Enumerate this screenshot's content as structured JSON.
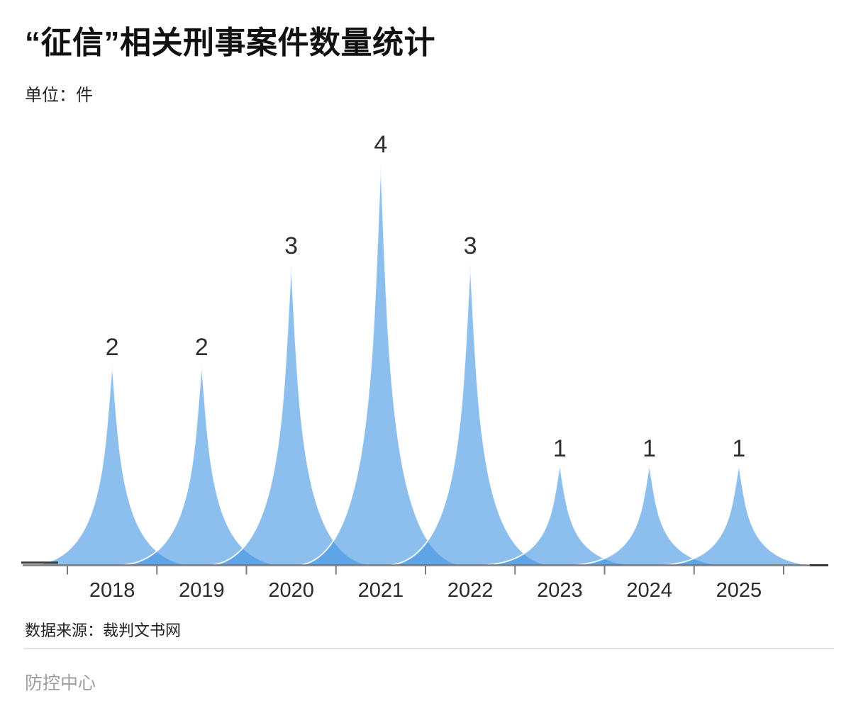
{
  "page": {
    "title": "“征信”相关刑事案件数量统计",
    "unit_label": "单位：件",
    "source_label": "数据来源：裁判文书网",
    "watermark": "防控中心"
  },
  "chart_data": {
    "type": "area",
    "subtype": "overlapping-peak-hills",
    "title": "“征信”相关刑事案件数量统计",
    "unit": "件",
    "categories": [
      "2018",
      "2019",
      "2020",
      "2021",
      "2022",
      "2023",
      "2024",
      "2025"
    ],
    "values": [
      2,
      2,
      3,
      4,
      3,
      1,
      1,
      1
    ],
    "ylim": [
      0,
      4
    ],
    "grid": false,
    "legend_position": "none",
    "colors": {
      "peak_fill": "#3F94E2",
      "peak_fill_opacity": 0.6,
      "peak_outline": "#FFFFFF",
      "axis_line": "#7B7B7B",
      "axis_end_segment": "#3A3A3A",
      "value_label": "#2E2E2E",
      "year_label": "#2B2B2B"
    }
  }
}
